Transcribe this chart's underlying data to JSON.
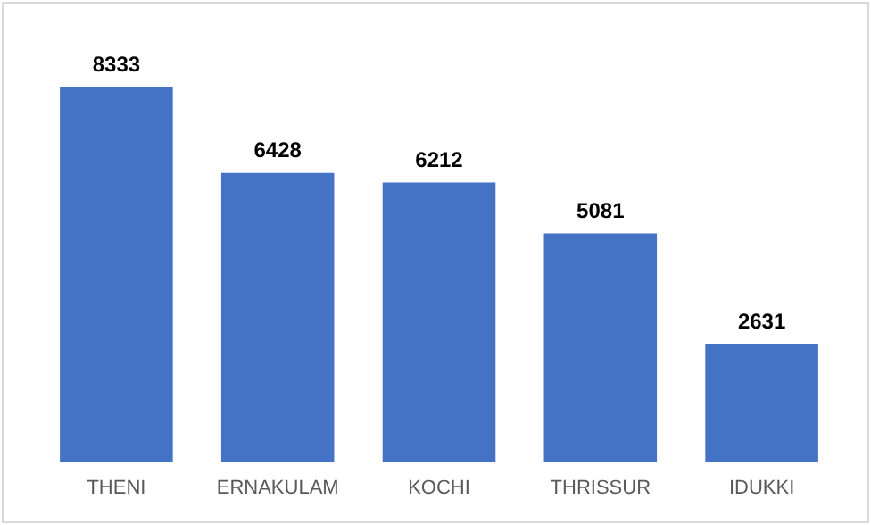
{
  "chart_data": {
    "type": "bar",
    "categories": [
      "THENI",
      "ERNAKULAM",
      "KOCHI",
      "THRISSUR",
      "IDUKKI"
    ],
    "values": [
      8333,
      6428,
      6212,
      5081,
      2631
    ],
    "color": "#4472c4",
    "data_labels": true,
    "grid": false,
    "legend": false
  }
}
